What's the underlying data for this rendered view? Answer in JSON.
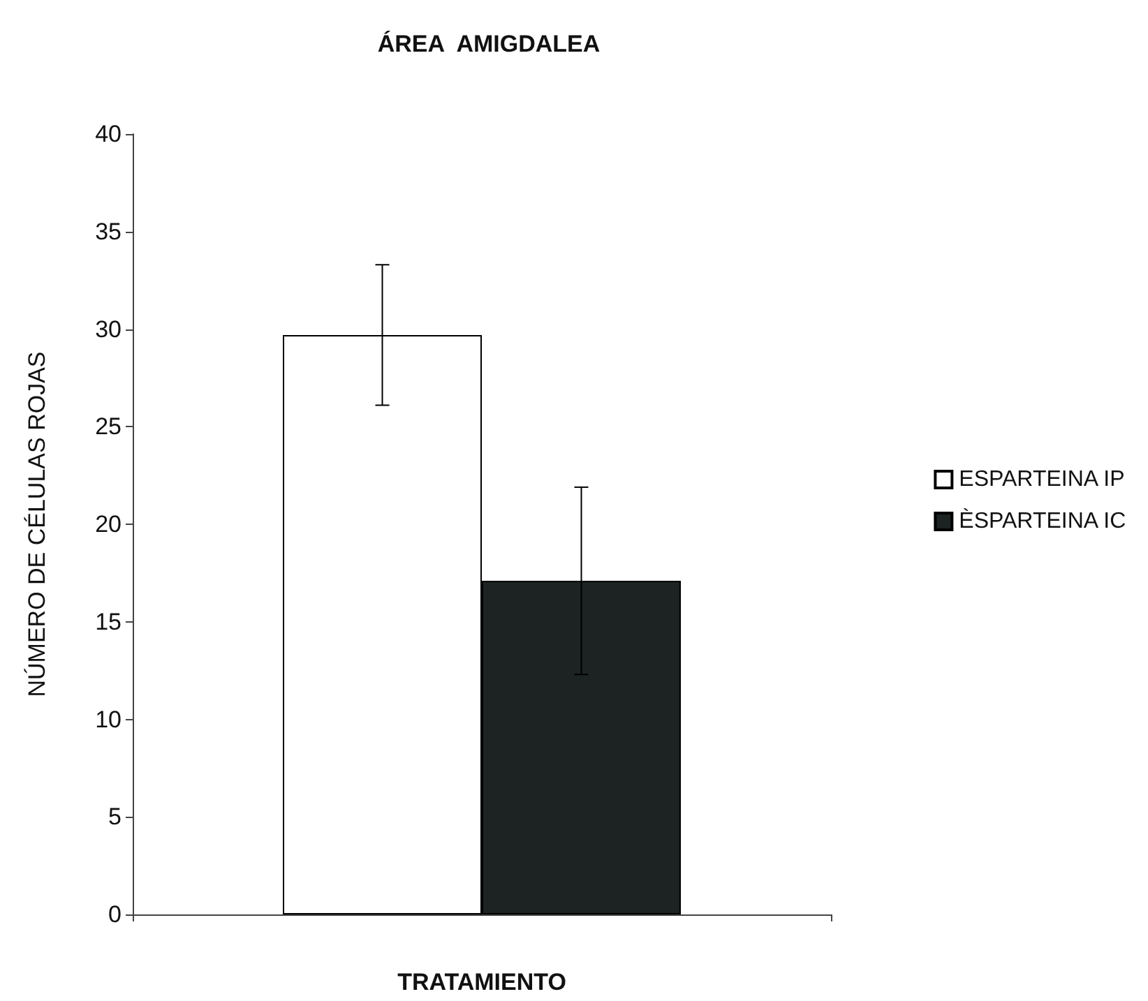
{
  "chart_data": {
    "type": "bar",
    "title": "ÁREA  AMIGDALEA",
    "xlabel": "TRATAMIENTO",
    "ylabel": "NÚMERO DE CÉLULAS ROJAS",
    "categories": [
      null
    ],
    "series": [
      {
        "name": "ESPARTEINA IP",
        "color": "#ffffff",
        "values": [
          29.7
        ],
        "errors": [
          3.6
        ]
      },
      {
        "name": "ÈSPARTEINA IC",
        "color": "#1c2322",
        "values": [
          17.1
        ],
        "errors": [
          4.8
        ]
      }
    ],
    "ylim": [
      0,
      40
    ],
    "yticks": [
      0,
      5,
      10,
      15,
      20,
      25,
      30,
      35,
      40
    ],
    "grid": false,
    "legend": "right"
  }
}
